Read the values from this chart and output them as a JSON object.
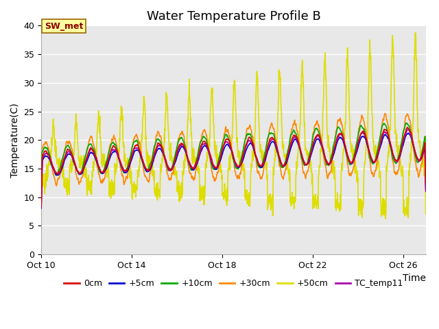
{
  "title": "Water Temperature Profile B",
  "xlabel": "Time",
  "ylabel": "Temperature(C)",
  "ylim": [
    0,
    40
  ],
  "n_days": 17,
  "xtick_labels": [
    "Oct 10",
    "Oct 14",
    "Oct 18",
    "Oct 22",
    "Oct 26"
  ],
  "xtick_positions": [
    0,
    4,
    8,
    12,
    16
  ],
  "annotation_text": "SW_met",
  "colors": {
    "0cm": "#dd0000",
    "+5cm": "#0000cc",
    "+10cm": "#00aa00",
    "+30cm": "#ff8800",
    "+50cm": "#dddd00",
    "TC_temp11": "#aa00aa"
  },
  "legend_labels": [
    "0cm",
    "+5cm",
    "+10cm",
    "+30cm",
    "+50cm",
    "TC_temp11"
  ],
  "plot_bg": "#e8e8e8",
  "fig_bg": "#ffffff",
  "title_fs": 13,
  "label_fs": 10,
  "tick_fs": 9,
  "legend_fs": 9
}
